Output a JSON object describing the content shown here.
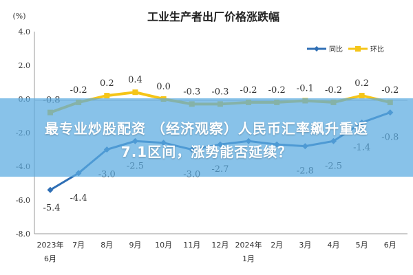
{
  "chart_data": {
    "type": "line",
    "title": "工业生产者出厂价格涨跌幅",
    "unit_label": "(%)",
    "ylim": [
      -8.0,
      4.0
    ],
    "yticks": [
      "4.0",
      "2.0",
      "0.0",
      "-2.0",
      "-4.0",
      "-6.0",
      "-8.0"
    ],
    "ytick_values": [
      4,
      2,
      0,
      -2,
      -4,
      -6,
      -8
    ],
    "categories": [
      "2023年6月",
      "7月",
      "8月",
      "9月",
      "10月",
      "11月",
      "12月",
      "2024年1月",
      "2月",
      "3月",
      "4月",
      "5月",
      "6月"
    ],
    "legend_position": "top-right",
    "grid": false,
    "series": [
      {
        "name": "同比",
        "color": "#2f6fb5",
        "values": [
          -5.4,
          -4.4,
          -3.0,
          -2.5,
          -2.6,
          -3.0,
          -2.7,
          -2.5,
          -2.7,
          -2.8,
          -2.5,
          -1.4,
          -0.8
        ],
        "labels": [
          "-5.4",
          "-4.4",
          "-3.0",
          "-2.5",
          "",
          "-3.0",
          "-2.7",
          "",
          "",
          "-2.8",
          "-2.5",
          "-1.4",
          "-0.8"
        ]
      },
      {
        "name": "环比",
        "color": "#f5c518",
        "values": [
          -0.8,
          -0.2,
          0.2,
          0.4,
          0.0,
          -0.3,
          -0.3,
          -0.2,
          -0.2,
          -0.1,
          -0.2,
          0.2,
          -0.2
        ],
        "labels": [
          "-0.8",
          "-0.2",
          "0.2",
          "0.4",
          "0.0",
          "-0.3",
          "-0.3",
          "-0.2",
          "-0.2",
          "-0.1",
          "-0.2",
          "0.2",
          "-0.2"
        ]
      }
    ]
  },
  "overlay": {
    "line1": "最专业炒股配资 （经济观察）人民币汇率飙升重返",
    "line2": "7.1区间，涨势能否延续？"
  }
}
